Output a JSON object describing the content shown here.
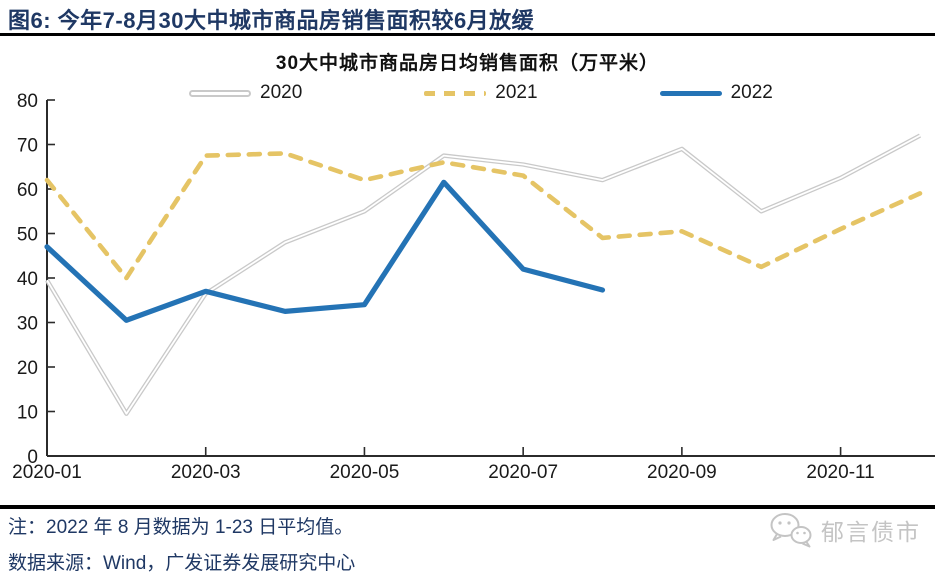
{
  "header": {
    "title": "图6:  今年7-8月30大中城市商品房销售面积较6月放缓"
  },
  "chart_data": {
    "type": "line",
    "title": "30大中城市商品房日均销售面积（万平米）",
    "x": [
      "2020-01",
      "2020-02",
      "2020-03",
      "2020-04",
      "2020-05",
      "2020-06",
      "2020-07",
      "2020-08",
      "2020-09",
      "2020-10",
      "2020-11",
      "2020-12"
    ],
    "x_tick_labels": [
      "2020-01",
      "2020-03",
      "2020-05",
      "2020-07",
      "2020-09",
      "2020-11"
    ],
    "x_tick_indices": [
      0,
      2,
      4,
      6,
      8,
      10
    ],
    "ylim": [
      0,
      80
    ],
    "ytick_step": 10,
    "legend_position": "top",
    "grid": "off",
    "series": [
      {
        "name": "2020",
        "style": "hollow",
        "color": "#c9c9c9",
        "values": [
          39.5,
          9.5,
          36.5,
          48,
          55,
          67.5,
          65.5,
          62,
          69,
          55,
          62.5,
          72
        ]
      },
      {
        "name": "2021",
        "style": "dashed",
        "color": "#e5c465",
        "values": [
          62,
          40,
          67.5,
          68,
          62,
          66,
          63,
          49,
          50.5,
          42.5,
          51,
          59
        ]
      },
      {
        "name": "2022",
        "style": "solid",
        "color": "#2473b5",
        "values": [
          47,
          30.5,
          37,
          32.5,
          34,
          61.5,
          42,
          37.3,
          null,
          null,
          null,
          null
        ]
      }
    ]
  },
  "footer": {
    "note": "注：2022 年 8 月数据为 1-23 日平均值。",
    "source": "数据来源：Wind，广发证券发展研究中心"
  },
  "watermark": {
    "label": "郁言债市",
    "icon": "wechat-icon"
  },
  "colors": {
    "title_navy": "#1f3864",
    "axis": "#2b2b2b",
    "series_2020": "#c9c9c9",
    "series_2021": "#e5c465",
    "series_2022": "#2473b5",
    "watermark_gray": "#c4c4c4"
  }
}
